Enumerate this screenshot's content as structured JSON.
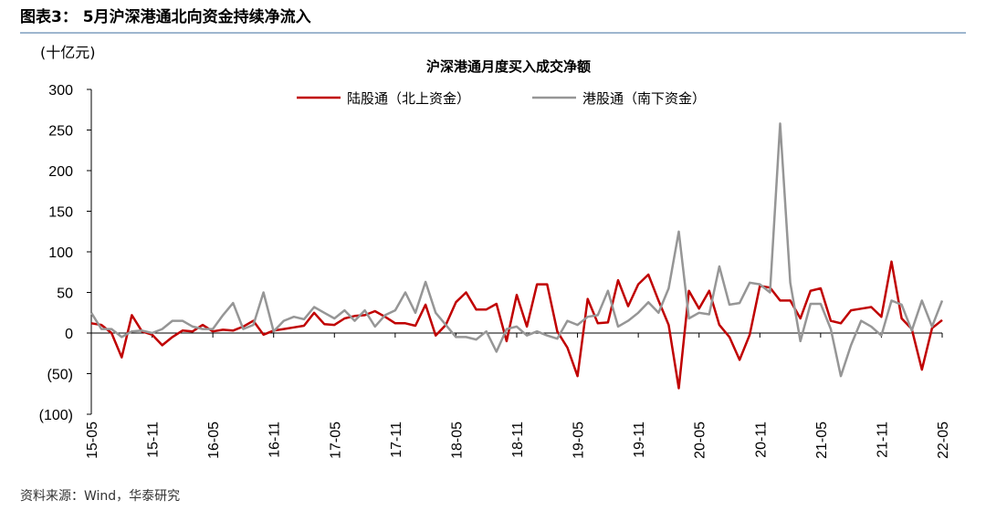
{
  "chart_data": {
    "type": "line",
    "title": "图表3： 5月沪深港通北向资金持续净流入",
    "subtitle": "沪深港通月度买入成交净额",
    "y_label": "(十亿元)",
    "source": "资料来源：Wind，华泰研究",
    "categories": [
      "15-05",
      null,
      null,
      null,
      null,
      null,
      "15-11",
      null,
      null,
      null,
      null,
      null,
      "16-05",
      null,
      null,
      null,
      null,
      null,
      "16-11",
      null,
      null,
      null,
      null,
      null,
      "17-05",
      null,
      null,
      null,
      null,
      null,
      "17-11",
      null,
      null,
      null,
      null,
      null,
      "18-05",
      null,
      null,
      null,
      null,
      null,
      "18-11",
      null,
      null,
      null,
      null,
      null,
      "19-05",
      null,
      null,
      null,
      null,
      null,
      "19-11",
      null,
      null,
      null,
      null,
      null,
      "20-05",
      null,
      null,
      null,
      null,
      null,
      "20-11",
      null,
      null,
      null,
      null,
      null,
      "21-05",
      null,
      null,
      null,
      null,
      null,
      "21-11",
      null,
      null,
      null,
      null,
      null,
      "22-05"
    ],
    "series": [
      {
        "name": "陆股通（北上资金）",
        "color": "#c00000",
        "values": [
          12,
          10,
          0,
          -30,
          22,
          2,
          -2,
          -15,
          -5,
          3,
          2,
          10,
          2,
          4,
          3,
          8,
          15,
          -2,
          3,
          5,
          7,
          9,
          25,
          11,
          10,
          18,
          21,
          22,
          27,
          20,
          12,
          12,
          9,
          35,
          -3,
          10,
          38,
          50,
          29,
          29,
          36,
          -10,
          47,
          8,
          60,
          60,
          2,
          -18,
          -53,
          42,
          12,
          13,
          65,
          33,
          60,
          72,
          40,
          10,
          -68,
          52,
          30,
          52,
          10,
          -5,
          -33,
          -2,
          58,
          56,
          40,
          40,
          18,
          52,
          55,
          15,
          12,
          28,
          30,
          32,
          20,
          88,
          18,
          5,
          -45,
          6,
          16
        ]
      },
      {
        "name": "港股通（南下资金）",
        "color": "#969696",
        "values": [
          25,
          5,
          5,
          -5,
          2,
          3,
          0,
          5,
          15,
          15,
          8,
          5,
          5,
          22,
          37,
          5,
          10,
          50,
          2,
          15,
          20,
          17,
          32,
          25,
          18,
          28,
          15,
          28,
          8,
          22,
          28,
          50,
          25,
          63,
          25,
          10,
          -5,
          -5,
          -8,
          2,
          -23,
          5,
          8,
          -3,
          2,
          -3,
          -7,
          15,
          10,
          20,
          22,
          52,
          8,
          15,
          25,
          38,
          25,
          55,
          125,
          18,
          25,
          23,
          82,
          35,
          37,
          62,
          60,
          50,
          258,
          62,
          -10,
          36,
          36,
          5,
          -53,
          -15,
          15,
          8,
          -3,
          40,
          35,
          3,
          40,
          8,
          40
        ]
      }
    ],
    "ylim": [
      -100,
      300
    ],
    "yticks": [
      {
        "value": -100,
        "label": "(100)"
      },
      {
        "value": -50,
        "label": "(50)"
      },
      0,
      50,
      100,
      150,
      200,
      250,
      300
    ],
    "legend": "top",
    "grid": false
  }
}
